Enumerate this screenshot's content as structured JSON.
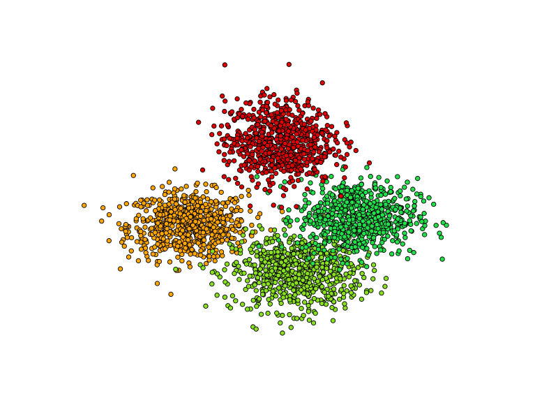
{
  "chart_data": {
    "type": "scatter",
    "title": "",
    "xlabel": "",
    "ylabel": "",
    "axes_visible": false,
    "grid": false,
    "legend": "none",
    "xlim": [
      -4.6,
      4.6
    ],
    "ylim": [
      -4.0,
      4.0
    ],
    "series": [
      {
        "color": "#dd0000",
        "center": [
          0.0,
          1.3
        ],
        "spread": [
          0.55,
          0.5
        ],
        "x": [
          -0.69,
          -0.55,
          -0.4,
          -0.28,
          -0.13,
          0.0,
          0.15,
          0.29,
          0.44,
          0.58,
          0.71,
          -0.62,
          -0.47,
          -0.33,
          -0.19,
          -0.04,
          0.1,
          0.24,
          0.39,
          0.52,
          0.66,
          -0.74,
          -0.58,
          -0.44,
          -0.31,
          -0.16,
          -0.02,
          0.12,
          0.27,
          0.41,
          0.55,
          0.69,
          -0.49,
          -0.35,
          -0.21,
          -0.07,
          0.08,
          0.22,
          0.36,
          0.5,
          -0.98,
          -0.9,
          0.92,
          1.02,
          -0.31,
          0.31,
          -0.15,
          0.12,
          -0.6,
          0.62
        ],
        "y": [
          1.36,
          1.45,
          1.53,
          1.4,
          1.6,
          1.5,
          1.62,
          1.44,
          1.52,
          1.38,
          1.46,
          1.14,
          1.2,
          1.3,
          1.22,
          1.34,
          1.26,
          1.18,
          1.32,
          1.24,
          1.1,
          0.93,
          1.01,
          1.05,
          0.96,
          1.08,
          0.98,
          1.03,
          0.94,
          1.06,
          0.97,
          0.9,
          0.75,
          0.82,
          0.71,
          0.79,
          0.73,
          0.84,
          0.77,
          0.7,
          1.45,
          1.05,
          1.4,
          1.0,
          2.05,
          1.98,
          2.15,
          2.08,
          1.78,
          1.74
        ]
      },
      {
        "color": "#ffa500",
        "center": [
          -1.5,
          -0.3
        ],
        "spread": [
          0.6,
          0.4
        ],
        "x": [
          -2.23,
          -2.05,
          -1.88,
          -1.72,
          -1.55,
          -1.38,
          -1.21,
          -1.04,
          -0.88,
          -0.73,
          -2.12,
          -1.96,
          -1.8,
          -1.63,
          -1.46,
          -1.29,
          -1.12,
          -0.96,
          -0.81,
          -2.28,
          -2.1,
          -1.93,
          -1.76,
          -1.59,
          -1.42,
          -1.25,
          -1.08,
          -0.92,
          -0.76,
          -2.0,
          -1.84,
          -1.67,
          -1.5,
          -1.33,
          -1.16,
          -1.0,
          -2.8,
          -2.55,
          -0.45,
          -0.62,
          -2.4,
          -1.6
        ],
        "y": [
          0.12,
          0.18,
          0.08,
          0.2,
          0.14,
          0.22,
          0.1,
          0.16,
          0.06,
          0.13,
          -0.16,
          -0.1,
          -0.2,
          -0.08,
          -0.14,
          -0.04,
          -0.18,
          -0.06,
          -0.12,
          -0.42,
          -0.36,
          -0.46,
          -0.32,
          -0.4,
          -0.3,
          -0.44,
          -0.34,
          -0.48,
          -0.38,
          -0.66,
          -0.6,
          -0.7,
          -0.58,
          -0.64,
          -0.72,
          -0.62,
          -0.1,
          -0.7,
          -0.3,
          0.25,
          0.65,
          -0.98
        ]
      },
      {
        "color": "#22e04a",
        "center": [
          1.3,
          -0.15
        ],
        "spread": [
          0.6,
          0.45
        ],
        "x": [
          0.56,
          0.72,
          0.88,
          1.04,
          1.2,
          1.36,
          1.52,
          1.68,
          1.84,
          2.0,
          0.64,
          0.8,
          0.96,
          1.12,
          1.28,
          1.44,
          1.6,
          1.76,
          1.92,
          0.52,
          0.68,
          0.84,
          1.0,
          1.16,
          1.32,
          1.48,
          1.64,
          1.8,
          1.96,
          0.76,
          0.92,
          1.08,
          1.24,
          1.4,
          1.56,
          1.72,
          2.55,
          2.4,
          0.3,
          1.95
        ],
        "y": [
          0.32,
          0.4,
          0.28,
          0.44,
          0.36,
          0.48,
          0.3,
          0.42,
          0.34,
          0.26,
          0.06,
          0.12,
          0.02,
          0.14,
          0.08,
          0.16,
          0.04,
          0.1,
          0.0,
          -0.22,
          -0.16,
          -0.26,
          -0.12,
          -0.2,
          -0.1,
          -0.24,
          -0.14,
          -0.28,
          -0.18,
          -0.48,
          -0.42,
          -0.52,
          -0.4,
          -0.46,
          -0.54,
          -0.44,
          0.1,
          -0.48,
          -0.2,
          -0.62
        ]
      },
      {
        "color": "#88e01e",
        "center": [
          0.3,
          -1.2
        ],
        "spread": [
          0.65,
          0.45
        ],
        "x": [
          -0.47,
          -0.3,
          -0.13,
          0.04,
          0.21,
          0.38,
          0.55,
          0.72,
          0.89,
          1.06,
          -0.4,
          -0.23,
          -0.06,
          0.11,
          0.28,
          0.45,
          0.62,
          0.79,
          0.96,
          -0.52,
          -0.35,
          -0.18,
          -0.01,
          0.16,
          0.33,
          0.5,
          0.67,
          0.84,
          1.01,
          -0.27,
          -0.1,
          0.07,
          0.24,
          0.41,
          0.58,
          0.75,
          -1.1,
          1.4,
          -0.8,
          0.6,
          0.95,
          -0.2
        ],
        "y": [
          -0.76,
          -0.7,
          -0.82,
          -0.68,
          -0.74,
          -0.64,
          -0.8,
          -0.72,
          -0.84,
          -0.78,
          -1.06,
          -1.0,
          -1.12,
          -0.98,
          -1.04,
          -0.94,
          -1.1,
          -1.02,
          -1.14,
          -1.36,
          -1.3,
          -1.42,
          -1.26,
          -1.34,
          -1.24,
          -1.4,
          -1.28,
          -1.44,
          -1.32,
          -1.62,
          -1.56,
          -1.68,
          -1.54,
          -1.6,
          -1.7,
          -1.58,
          -1.2,
          -1.3,
          -1.88,
          -1.98,
          -0.6,
          -0.55
        ]
      }
    ]
  }
}
